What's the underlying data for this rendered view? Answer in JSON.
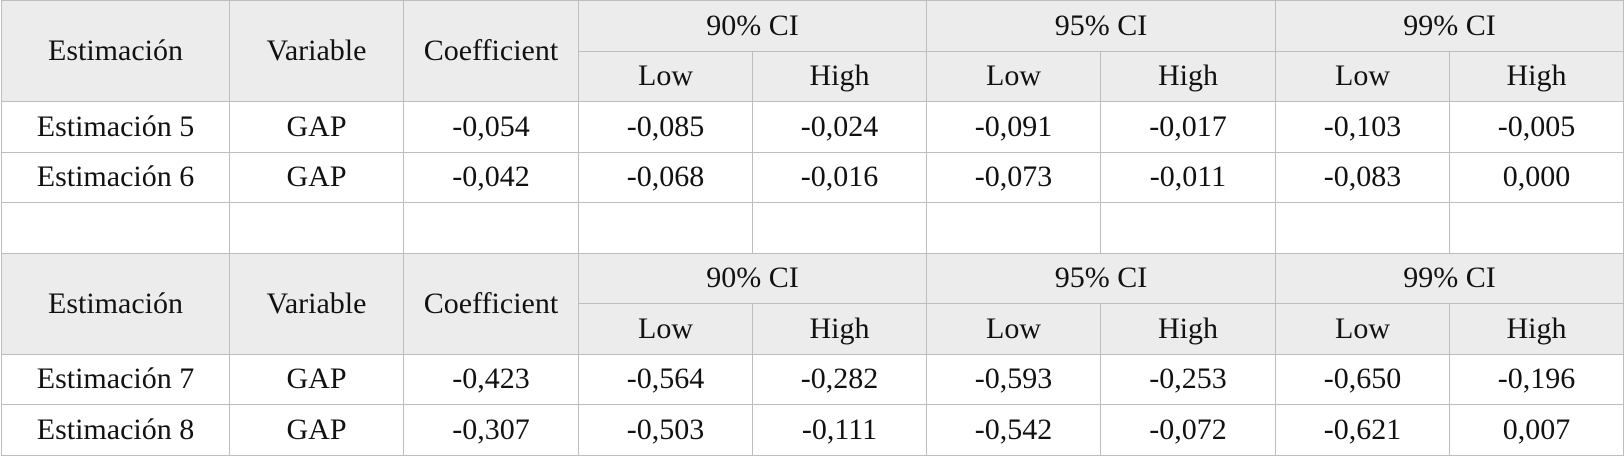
{
  "tables": [
    {
      "header": {
        "labels": [
          "Estimación",
          "Variable",
          "Coefficient"
        ],
        "groups": [
          "90% CI",
          "95% CI",
          "99% CI"
        ],
        "subheaders": [
          "Low",
          "High",
          "Low",
          "High",
          "Low",
          "High"
        ]
      },
      "rows": [
        [
          "Estimación 5",
          "GAP",
          "-0,054",
          "-0,085",
          "-0,024",
          "-0,091",
          "-0,017",
          "-0,103",
          "-0,005"
        ],
        [
          "Estimación 6",
          "GAP",
          "-0,042",
          "-0,068",
          "-0,016",
          "-0,073",
          "-0,011",
          "-0,083",
          "0,000"
        ]
      ]
    },
    {
      "header": {
        "labels": [
          "Estimación",
          "Variable",
          "Coefficient"
        ],
        "groups": [
          "90% CI",
          "95% CI",
          "99% CI"
        ],
        "subheaders": [
          "Low",
          "High",
          "Low",
          "High",
          "Low",
          "High"
        ]
      },
      "rows": [
        [
          "Estimación 7",
          "GAP",
          "-0,423",
          "-0,564",
          "-0,282",
          "-0,593",
          "-0,253",
          "-0,650",
          "-0,196"
        ],
        [
          "Estimación 8",
          "GAP",
          "-0,307",
          "-0,503",
          "-0,111",
          "-0,542",
          "-0,072",
          "-0,621",
          "0,007"
        ]
      ]
    }
  ]
}
